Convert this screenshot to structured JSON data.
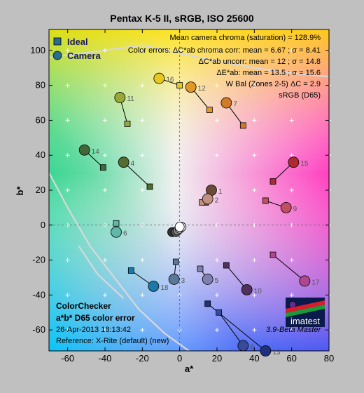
{
  "title": "Pentax K-5 II, sRGB, ISO 25600",
  "legend": {
    "ideal": "Ideal",
    "camera": "Camera"
  },
  "info_lines": [
    "Mean camera chroma (saturation) = 128.9%",
    "Color errors: ΔC*ab chroma corr:  mean = 6.67 ;  σ = 8.41",
    "ΔC*ab uncorr:  mean = 12 ;  σ = 14.8",
    "ΔE*ab:  mean = 13.5 ;  σ = 15.6",
    "W Bal (Zones 2-5) ΔC = 2.9",
    "sRGB (D65)"
  ],
  "bottom_left": {
    "line1": "ColorChecker",
    "line2": "a*b* D65 color error",
    "line3": "26-Apr-2013 18:13:42",
    "line4": "Reference: X-Rite (default) (new)"
  },
  "version": "3.9-Beta  Master",
  "logo_text": "imatest",
  "chart_data": {
    "type": "scatter",
    "title": "Pentax K-5 II, sRGB, ISO 25600",
    "xlabel": "a*",
    "ylabel": "b*",
    "xlim": [
      -70,
      80
    ],
    "ylim": [
      -72,
      112
    ],
    "xticks": [
      -60,
      -40,
      -20,
      0,
      20,
      40,
      60,
      80
    ],
    "yticks": [
      -60,
      -40,
      -20,
      0,
      20,
      40,
      60,
      80,
      100
    ],
    "patches": [
      {
        "id": "1",
        "ideal": [
          14,
          13
        ],
        "camera": [
          17,
          20
        ],
        "color": "#6b4a38"
      },
      {
        "id": "2",
        "ideal": [
          12,
          13
        ],
        "camera": [
          15,
          15
        ],
        "color": "#c09080"
      },
      {
        "id": "3",
        "ideal": [
          -2,
          -21
        ],
        "camera": [
          -3,
          -31
        ],
        "color": "#5a7898"
      },
      {
        "id": "4",
        "ideal": [
          -16,
          22
        ],
        "camera": [
          -30,
          36
        ],
        "color": "#556b2f"
      },
      {
        "id": "5",
        "ideal": [
          11,
          -25
        ],
        "camera": [
          15,
          -31
        ],
        "color": "#8080b0"
      },
      {
        "id": "6",
        "ideal": [
          -34,
          1
        ],
        "camera": [
          -34,
          -4
        ],
        "color": "#60b8a8"
      },
      {
        "id": "7",
        "ideal": [
          34,
          57
        ],
        "camera": [
          25,
          70
        ],
        "color": "#d07a2a"
      },
      {
        "id": "8",
        "ideal": [
          21,
          -50
        ],
        "camera": [
          34,
          -69
        ],
        "color": "#3a4a9a"
      },
      {
        "id": "9",
        "ideal": [
          46,
          14
        ],
        "camera": [
          57,
          10
        ],
        "color": "#c05060"
      },
      {
        "id": "10",
        "ideal": [
          25,
          -23
        ],
        "camera": [
          36,
          -37
        ],
        "color": "#52305a"
      },
      {
        "id": "11",
        "ideal": [
          -28,
          58
        ],
        "camera": [
          -32,
          73
        ],
        "color": "#98a838"
      },
      {
        "id": "12",
        "ideal": [
          16,
          66
        ],
        "camera": [
          6,
          79
        ],
        "color": "#e09828"
      },
      {
        "id": "13",
        "ideal": [
          15,
          -45
        ],
        "camera": [
          46,
          -72
        ],
        "color": "#203080"
      },
      {
        "id": "14",
        "ideal": [
          -41,
          33
        ],
        "camera": [
          -51,
          43
        ],
        "color": "#406838"
      },
      {
        "id": "15",
        "ideal": [
          50,
          25
        ],
        "camera": [
          61,
          36
        ],
        "color": "#b02830"
      },
      {
        "id": "16",
        "ideal": [
          0,
          80
        ],
        "camera": [
          -11,
          84
        ],
        "color": "#e8c820"
      },
      {
        "id": "17",
        "ideal": [
          50,
          -17
        ],
        "camera": [
          67,
          -32
        ],
        "color": "#b04890"
      },
      {
        "id": "18",
        "ideal": [
          -26,
          -26
        ],
        "camera": [
          -14,
          -35
        ],
        "color": "#1c78a8"
      }
    ],
    "neutrals": [
      {
        "camera": [
          -4,
          -4
        ],
        "color": "#303030"
      },
      {
        "camera": [
          -2,
          -4
        ],
        "color": "#555555"
      },
      {
        "camera": [
          -1,
          -3
        ],
        "color": "#888888"
      },
      {
        "camera": [
          0,
          -2
        ],
        "color": "#b8b8b8"
      },
      {
        "camera": [
          1,
          -1
        ],
        "color": "#e8e8e8"
      },
      {
        "camera": [
          0,
          -1
        ],
        "color": "#ffffff"
      }
    ]
  }
}
